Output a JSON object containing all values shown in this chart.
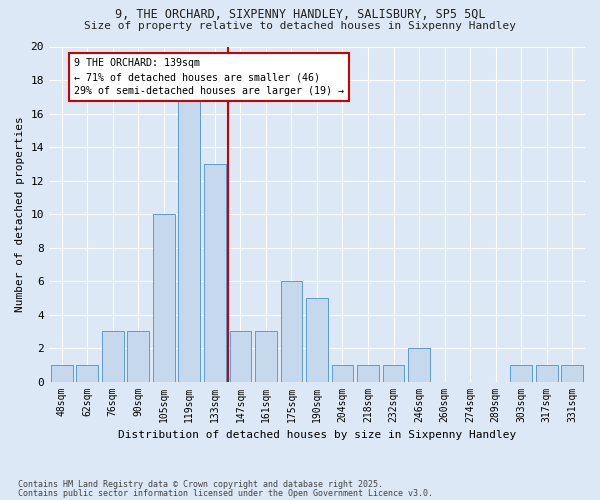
{
  "title1": "9, THE ORCHARD, SIXPENNY HANDLEY, SALISBURY, SP5 5QL",
  "title2": "Size of property relative to detached houses in Sixpenny Handley",
  "xlabel": "Distribution of detached houses by size in Sixpenny Handley",
  "ylabel": "Number of detached properties",
  "categories": [
    "48sqm",
    "62sqm",
    "76sqm",
    "90sqm",
    "105sqm",
    "119sqm",
    "133sqm",
    "147sqm",
    "161sqm",
    "175sqm",
    "190sqm",
    "204sqm",
    "218sqm",
    "232sqm",
    "246sqm",
    "260sqm",
    "274sqm",
    "289sqm",
    "303sqm",
    "317sqm",
    "331sqm"
  ],
  "values": [
    1,
    1,
    3,
    3,
    10,
    17,
    13,
    3,
    3,
    6,
    5,
    1,
    1,
    1,
    2,
    0,
    0,
    0,
    1,
    1,
    1
  ],
  "bar_color": "#c5d8ec",
  "bar_edge_color": "#5b9bd5",
  "highlight_index": 7,
  "highlight_line_color": "#cc0000",
  "annotation_text": "9 THE ORCHARD: 139sqm\n← 71% of detached houses are smaller (46)\n29% of semi-detached houses are larger (19) →",
  "annotation_box_edge": "#cc0000",
  "ylim": [
    0,
    20
  ],
  "yticks": [
    0,
    2,
    4,
    6,
    8,
    10,
    12,
    14,
    16,
    18,
    20
  ],
  "background_color": "#dce8f5",
  "plot_bg_color": "#dce8f5",
  "footer1": "Contains HM Land Registry data © Crown copyright and database right 2025.",
  "footer2": "Contains public sector information licensed under the Open Government Licence v3.0."
}
